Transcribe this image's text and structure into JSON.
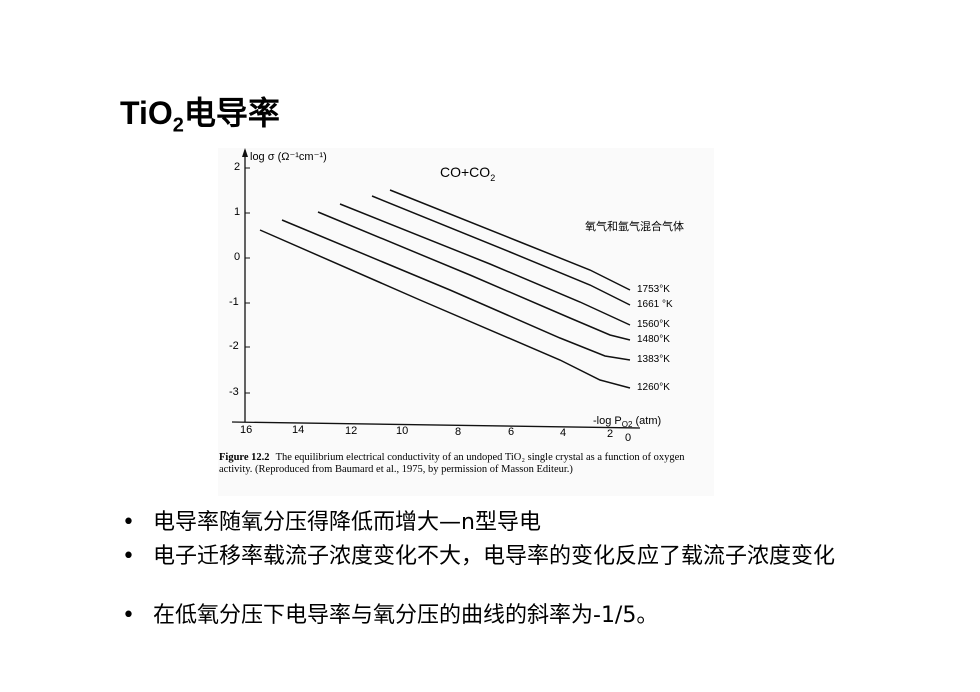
{
  "title": {
    "text": "TiO",
    "subscript": "2",
    "rest": "电导率"
  },
  "figure": {
    "y_axis_label": "log σ (Ω⁻¹cm⁻¹)",
    "y_ticks": [
      "2",
      "1",
      "0",
      "-1",
      "-2",
      "-3"
    ],
    "x_ticks": [
      "16",
      "14",
      "12",
      "10",
      "8",
      "6",
      "4",
      "2",
      "0"
    ],
    "x_axis_label": "-log P",
    "x_axis_label_sub": "O2",
    "x_axis_unit": "(atm)",
    "curve_labels": [
      "1753°K",
      "1661 °K",
      "1560°K",
      "1480°K",
      "1383°K",
      "1260°K"
    ],
    "annotations": [
      {
        "text": "CO+CO",
        "subscript": "2"
      },
      {
        "text": "氧气和氩气混合气体"
      }
    ],
    "caption": {
      "label": "Figure 12.2",
      "text": "The equilibrium electrical conductivity of an undoped TiO₂ single crystal as a function of oxygen activity. (Reproduced from Baumard et al., 1975, by permission of Masson Editeur.)"
    }
  },
  "bullets": [
    "电导率随氧分压得降低而增大—n型导电",
    "电子迁移率载流子浓度变化不大，电导率的变化反应了载流子浓度变化",
    "在低氧分压下电导率与氧分压的曲线的斜率为-1/5。"
  ]
}
